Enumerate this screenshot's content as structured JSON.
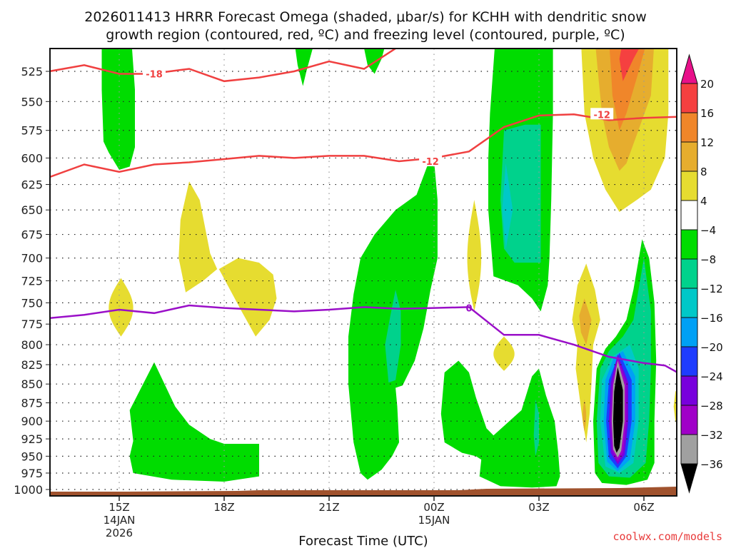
{
  "chart_data": {
    "type": "heatmap",
    "title_lines": [
      "2026011413 HRRR Forecast Omega (shaded, μbar/s) for KCHH with dendritic snow",
      "growth region (contoured, red, ºC) and freezing level (contoured, purple, ºC)"
    ],
    "xlabel": "Forecast Time (UTC)",
    "ylabel": "",
    "x_axis": {
      "units": "hours since 2026-01-14 00Z",
      "range": [
        13.0,
        31.0
      ],
      "ticks": [
        {
          "hour": 15,
          "label": "15Z",
          "sublabel1": "14JAN",
          "sublabel2": "2026"
        },
        {
          "hour": 18,
          "label": "18Z",
          "sublabel1": "",
          "sublabel2": ""
        },
        {
          "hour": 21,
          "label": "21Z",
          "sublabel1": "",
          "sublabel2": ""
        },
        {
          "hour": 24,
          "label": "00Z",
          "sublabel1": "15JAN",
          "sublabel2": ""
        },
        {
          "hour": 27,
          "label": "03Z",
          "sublabel1": "",
          "sublabel2": ""
        },
        {
          "hour": 30,
          "label": "06Z",
          "sublabel1": "",
          "sublabel2": ""
        }
      ]
    },
    "y_axis": {
      "units": "hPa",
      "scale": "log",
      "inverted": true,
      "range": [
        505,
        1008
      ],
      "ticks": [
        525,
        550,
        575,
        600,
        625,
        650,
        675,
        700,
        725,
        750,
        775,
        800,
        825,
        850,
        875,
        900,
        925,
        950,
        975,
        1000
      ]
    },
    "grid": true,
    "colorbar": {
      "placement": "right",
      "levels": [
        20,
        16,
        12,
        8,
        4,
        -4,
        -8,
        -12,
        -16,
        -20,
        -24,
        -28,
        -32,
        -36
      ],
      "above_color": "#e8108a",
      "below_color": "#000000",
      "colors": [
        "#f54040",
        "#f0862a",
        "#e6ad2e",
        "#e6dc30",
        "#ffffff",
        "#00dc00",
        "#00d28c",
        "#00c8c8",
        "#00a0f5",
        "#1e3cff",
        "#7800dc",
        "#a000c8",
        "#a0a0a0"
      ]
    },
    "omega_regions": [
      {
        "name": "green-early-upper",
        "level": "-4 to -8",
        "hours": [
          14.6,
          15.4
        ],
        "pressure": [
          505,
          608
        ]
      },
      {
        "name": "green-low-left",
        "level": "-4 to -8",
        "hours": [
          15.4,
          19.0
        ],
        "pressure": [
          820,
          990
        ]
      },
      {
        "name": "yellow-small-15z",
        "level": "4 to 8",
        "hours": [
          14.5,
          15.2
        ],
        "pressure": [
          725,
          785
        ]
      },
      {
        "name": "yellow-17z-upper",
        "level": "4 to 8",
        "hours": [
          16.7,
          17.8
        ],
        "pressure": [
          620,
          730
        ]
      },
      {
        "name": "yellow-18z-mid",
        "level": "4 to 8",
        "hours": [
          18.0,
          19.5
        ],
        "pressure": [
          690,
          790
        ]
      },
      {
        "name": "green-22z-band",
        "level": "-4 to -8",
        "hours": [
          21.6,
          24.0
        ],
        "pressure": [
          600,
          985
        ],
        "core": {
          "level": "-8 to -12",
          "hours": [
            22.6,
            23.1
          ],
          "pressure": [
            730,
            880
          ]
        }
      },
      {
        "name": "green-02z-upper",
        "level": "-4 to -8",
        "hours": [
          25.6,
          27.2
        ],
        "pressure": [
          505,
          760
        ],
        "core": {
          "level": "-8 to -12",
          "hours": [
            26.0,
            27.0
          ],
          "pressure": [
            540,
            700
          ],
          "inner": {
            "level": "-12 to -16",
            "hours": [
              26.0,
              26.3
            ],
            "pressure": [
              610,
              650
            ]
          }
        }
      },
      {
        "name": "green-01z-lower",
        "level": "-4 to -8",
        "hours": [
          24.3,
          27.4
        ],
        "pressure": [
          810,
          990
        ],
        "core": {
          "level": "-8 to -12",
          "hours": [
            26.8,
            27.0
          ],
          "pressure": [
            860,
            920
          ]
        }
      },
      {
        "name": "yellow-02z-small",
        "level": "4 to 8",
        "hours": [
          25.0,
          25.3
        ],
        "pressure": [
          640,
          760
        ]
      },
      {
        "name": "yellow-02z-lower",
        "level": "4 to 8",
        "hours": [
          25.9,
          26.3
        ],
        "pressure": [
          780,
          830
        ]
      },
      {
        "name": "positive-05z-upper",
        "level": "4 to >16",
        "hours": [
          28.2,
          30.6
        ],
        "pressure": [
          505,
          650
        ],
        "max": ">16"
      },
      {
        "name": "yellow-04z-mid",
        "level": "4 to 12",
        "hours": [
          28.0,
          28.9
        ],
        "pressure": [
          690,
          940
        ]
      },
      {
        "name": "negative-05z-core",
        "level": "-4 to < -36",
        "hours": [
          28.9,
          30.3
        ],
        "pressure": [
          680,
          985
        ],
        "min": "< -36",
        "min_center_hour": 29.3,
        "min_center_pressure": 880
      }
    ],
    "dgz_contours": [
      {
        "label": "-18",
        "color": "#f04040",
        "points": [
          [
            13.0,
            525
          ],
          [
            14.0,
            520
          ],
          [
            15.0,
            527
          ],
          [
            15.9,
            527
          ],
          [
            17.0,
            523
          ],
          [
            18.0,
            533
          ],
          [
            19.0,
            530
          ],
          [
            20.0,
            525
          ],
          [
            21.0,
            517
          ],
          [
            22.0,
            523
          ],
          [
            23.0,
            505
          ]
        ]
      },
      {
        "label": "-12",
        "color": "#f04040",
        "points": [
          [
            13.0,
            618
          ],
          [
            14.0,
            606
          ],
          [
            15.0,
            613
          ],
          [
            16.0,
            606
          ],
          [
            17.0,
            604
          ],
          [
            18.0,
            601
          ],
          [
            19.0,
            598
          ],
          [
            20.0,
            600
          ],
          [
            21.0,
            598
          ],
          [
            22.0,
            598
          ],
          [
            23.0,
            603
          ],
          [
            24.0,
            600
          ],
          [
            25.0,
            594
          ],
          [
            26.0,
            572
          ],
          [
            27.0,
            562
          ],
          [
            28.0,
            561
          ],
          [
            29.0,
            566
          ],
          [
            30.0,
            564
          ],
          [
            31.0,
            563
          ]
        ]
      }
    ],
    "freezing_level_contours": [
      {
        "label": "0",
        "color": "#9a0fc8",
        "points": [
          [
            13.0,
            768
          ],
          [
            14.0,
            764
          ],
          [
            15.0,
            758
          ],
          [
            16.0,
            762
          ],
          [
            17.0,
            753
          ],
          [
            18.0,
            756
          ],
          [
            19.0,
            758
          ],
          [
            20.0,
            760
          ],
          [
            21.0,
            758
          ],
          [
            22.0,
            755
          ],
          [
            23.0,
            757
          ],
          [
            24.0,
            756
          ],
          [
            25.0,
            755
          ],
          [
            26.0,
            788
          ],
          [
            27.0,
            788
          ],
          [
            28.0,
            800
          ],
          [
            29.0,
            815
          ],
          [
            30.0,
            823
          ],
          [
            30.6,
            826
          ],
          [
            31.0,
            836
          ]
        ]
      }
    ],
    "terrain_color": "#a0522d",
    "credit": "coolwx.com/models"
  }
}
